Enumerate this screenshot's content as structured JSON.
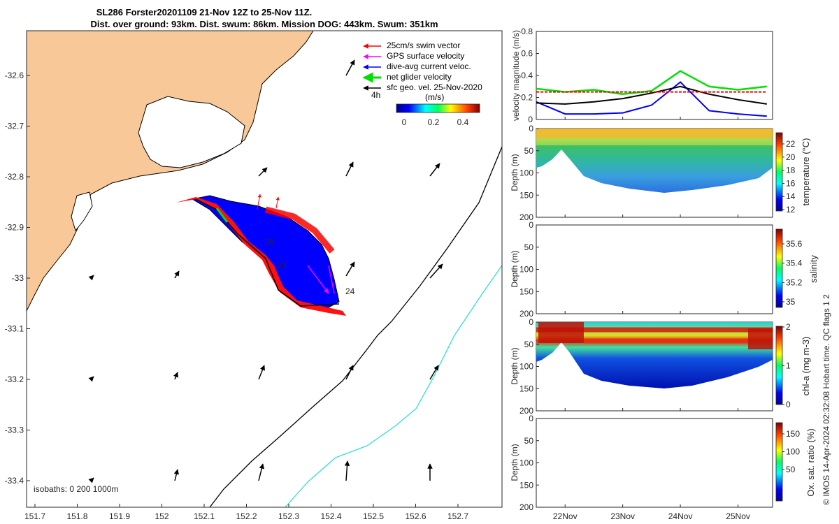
{
  "title": {
    "line1": "SL286 Forster20201109 21-Nov 12Z to 25-Nov 11Z.",
    "line2": "Dist. over ground: 93km. Dist. swum: 86km. Mission DOG: 443km. Swum: 351km"
  },
  "legend": {
    "items": [
      {
        "label": "25cm/s swim vector",
        "color": "#ff0000"
      },
      {
        "label": "GPS surface velocity",
        "color": "#ff00ff"
      },
      {
        "label": "dive-avg current veloc.",
        "color": "#0000ff"
      },
      {
        "label": "net glider velocity",
        "color": "#00e000"
      },
      {
        "label": "sfc geo. vel. 25-Nov-2020",
        "color": "#000000"
      }
    ],
    "time_tag": "4h",
    "colorbar_title": "(m/s)",
    "colorbar_ticks": [
      "0",
      "0.2",
      "0.4"
    ]
  },
  "map": {
    "x_ticks": [
      "151.7",
      "151.8",
      "151.9",
      "152",
      "152.1",
      "152.2",
      "152.3",
      "152.4",
      "152.5",
      "152.6",
      "152.7"
    ],
    "y_ticks": [
      "-32.6",
      "-32.7",
      "-32.8",
      "-32.9",
      "-33",
      "-33.1",
      "-33.2",
      "-33.3",
      "-33.4"
    ],
    "isobaths_label": "isobaths: 0   200  1000m",
    "day_labels": [
      "26",
      "23",
      "24"
    ],
    "colors": {
      "land": "#f8c898",
      "track": "#0000ff",
      "swim": "#ff0000",
      "isobath200": "#000000",
      "isobath1000": "#33dddd"
    }
  },
  "chart_data": [
    {
      "type": "line",
      "title": "",
      "ylabel": "velocity magnitude (m/s)",
      "ylim": [
        0,
        0.8
      ],
      "y_ticks": [
        "0",
        "0.2",
        "0.4",
        "0.6",
        "0.8"
      ],
      "x_days": [
        21.5,
        22.0,
        22.5,
        23.0,
        23.5,
        24.0,
        24.5,
        25.0,
        25.5
      ],
      "series": [
        {
          "color": "#00e000",
          "values": [
            0.28,
            0.25,
            0.27,
            0.23,
            0.26,
            0.44,
            0.3,
            0.27,
            0.3
          ]
        },
        {
          "color": "#0000ff",
          "values": [
            0.16,
            0.05,
            0.05,
            0.06,
            0.13,
            0.34,
            0.08,
            0.05,
            0.03
          ]
        },
        {
          "color": "#000000",
          "values": [
            0.15,
            0.14,
            0.16,
            0.19,
            0.24,
            0.3,
            0.23,
            0.18,
            0.14
          ]
        },
        {
          "color": "#ff0000",
          "values": [
            0.25,
            0.25,
            0.25,
            0.25,
            0.25,
            0.25,
            0.25,
            0.25,
            0.25
          ]
        }
      ]
    },
    {
      "type": "heatmap",
      "ylabel": "Depth (m)",
      "y_ticks": [
        "0",
        "50",
        "100",
        "150",
        "200"
      ],
      "colorbar_label": "temperature (°C)",
      "colorbar_ticks": [
        "22",
        "20",
        "18",
        "16",
        "14",
        "12"
      ]
    },
    {
      "type": "heatmap",
      "ylabel": "Depth (m)",
      "y_ticks": [
        "0",
        "50",
        "100",
        "150",
        "200"
      ],
      "colorbar_label": "salinity",
      "colorbar_ticks": [
        "35.6",
        "35.4",
        "35.2",
        "35"
      ]
    },
    {
      "type": "heatmap",
      "ylabel": "Depth (m)",
      "y_ticks": [
        "0",
        "50",
        "100",
        "150",
        "200"
      ],
      "colorbar_label": "chl-a (mg m-3)",
      "colorbar_ticks": [
        "2",
        "1",
        "0"
      ]
    },
    {
      "type": "heatmap",
      "ylabel": "Depth (m)",
      "y_ticks": [
        "0",
        "50",
        "100",
        "150",
        "200"
      ],
      "colorbar_label": "Ox. sat. ratio (%)",
      "colorbar_ticks": [
        "150",
        "100",
        "50"
      ]
    }
  ],
  "x_time_ticks": [
    "22Nov",
    "23Nov",
    "24Nov",
    "25Nov"
  ],
  "footer": "© IMOS 14-Apr-2024 02:32:08 Hobart time. QC flags 1  2"
}
